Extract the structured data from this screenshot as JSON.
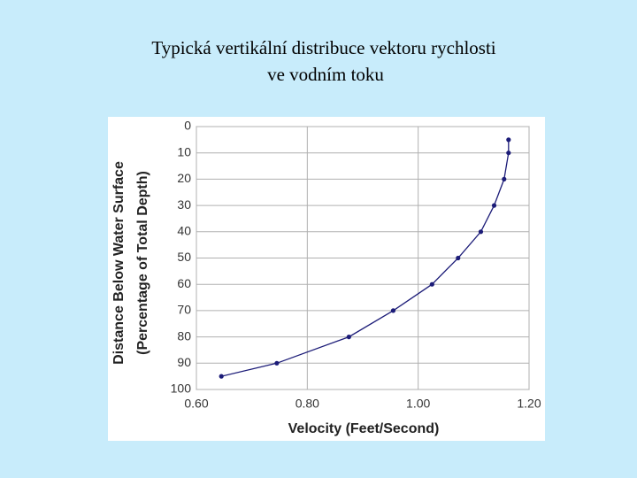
{
  "chart_data": {
    "type": "line",
    "title": [
      "Typická vertikální distribuce vektoru rychlosti",
      "ve vodním toku"
    ],
    "xlabel": "Velocity (Feet/Second)",
    "ylabel": [
      "Distance Below Water Surface",
      "(Percentage of Total Depth)"
    ],
    "x": [
      0.645,
      0.745,
      0.875,
      0.955,
      1.025,
      1.072,
      1.113,
      1.137,
      1.155,
      1.163,
      1.163
    ],
    "series": [
      {
        "color": "#1c1c78",
        "values": [
          95,
          90,
          80,
          70,
          60,
          50,
          40,
          30,
          20,
          10,
          5
        ]
      }
    ],
    "xlim": [
      0.6,
      1.2
    ],
    "xticks": [
      {
        "value": 0.6,
        "label": "0.60"
      },
      {
        "value": 0.8,
        "label": "0.80"
      },
      {
        "value": 1.0,
        "label": "1.00"
      },
      {
        "value": 1.2,
        "label": "1.20"
      }
    ],
    "ylim": [
      0,
      100
    ],
    "yticks": [
      0,
      10,
      20,
      30,
      40,
      50,
      60,
      70,
      80,
      90,
      100
    ],
    "y_inverted": true,
    "grid": true
  }
}
